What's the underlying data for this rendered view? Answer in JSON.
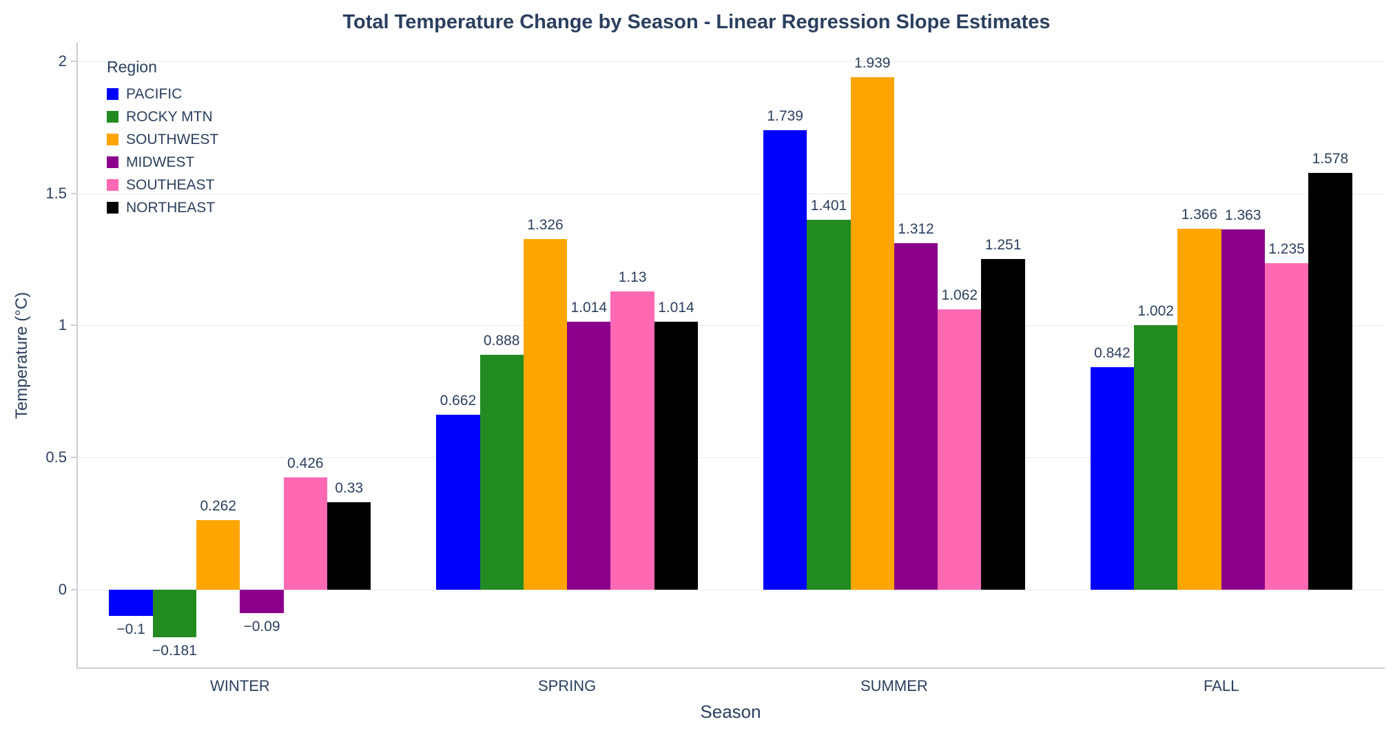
{
  "chart_data": {
    "type": "bar",
    "title": "Total Temperature Change by Season - Linear Regression Slope Estimates",
    "xlabel": "Season",
    "ylabel": "Temperature (°C)",
    "legend_title": "Region",
    "legend_position": "top-left",
    "grid": true,
    "categories": [
      "WINTER",
      "SPRING",
      "SUMMER",
      "FALL"
    ],
    "series": [
      {
        "name": "PACIFIC",
        "color": "#0000FF",
        "values": [
          -0.1,
          0.662,
          1.739,
          0.842
        ]
      },
      {
        "name": "ROCKY MTN",
        "color": "#228B22",
        "values": [
          -0.181,
          0.888,
          1.401,
          1.002
        ]
      },
      {
        "name": "SOUTHWEST",
        "color": "#FFA500",
        "values": [
          0.262,
          1.326,
          1.939,
          1.366
        ]
      },
      {
        "name": "MIDWEST",
        "color": "#8B008B",
        "values": [
          -0.09,
          1.014,
          1.312,
          1.363
        ]
      },
      {
        "name": "SOUTHEAST",
        "color": "#FF69B4",
        "values": [
          0.426,
          1.13,
          1.062,
          1.235
        ]
      },
      {
        "name": "NORTHEAST",
        "color": "#000000",
        "values": [
          0.33,
          1.014,
          1.251,
          1.578
        ]
      }
    ],
    "yticks": [
      0,
      0.5,
      1,
      1.5,
      2
    ],
    "ylim": [
      -0.3,
      2.07
    ],
    "style": {
      "text_color": "#2a3f5f",
      "grid_color": "#e7e9ec",
      "axis_color": "#c9ced4",
      "background": "#ffffff"
    }
  }
}
